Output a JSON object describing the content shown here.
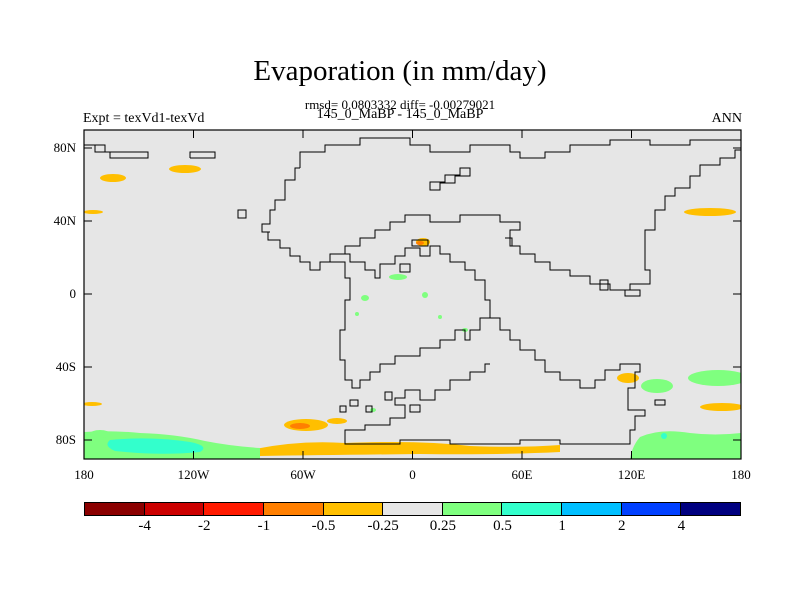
{
  "title": "Evaporation (in mm/day)",
  "stats_line": "rmsd= 0.0803332 diff= -0.00279021",
  "case_line": "145_0_MaBP - 145_0_MaBP",
  "expt_label": "Expt = texVd1-texVd",
  "season_label": "ANN",
  "map": {
    "projection": "cylindrical equidistant",
    "background_color": "#e6e6e6",
    "lat_ticks": [
      "80N",
      "40N",
      "0",
      "40S",
      "80S"
    ],
    "lon_ticks": [
      "180",
      "120W",
      "60W",
      "0",
      "60E",
      "120E",
      "180"
    ],
    "lat_range": [
      -90,
      90
    ],
    "lon_range": [
      -180,
      180
    ]
  },
  "colorbar": {
    "colors": [
      "#8b0000",
      "#cc0000",
      "#ff1a00",
      "#ff7f00",
      "#ffbf00",
      "#e6e6e6",
      "#7fff7f",
      "#33ffcc",
      "#00bfff",
      "#0040ff",
      "#000080"
    ],
    "labels": [
      "-4",
      "-2",
      "-1",
      "-0.5",
      "-0.25",
      "0.25",
      "0.5",
      "1",
      "2",
      "4"
    ]
  }
}
